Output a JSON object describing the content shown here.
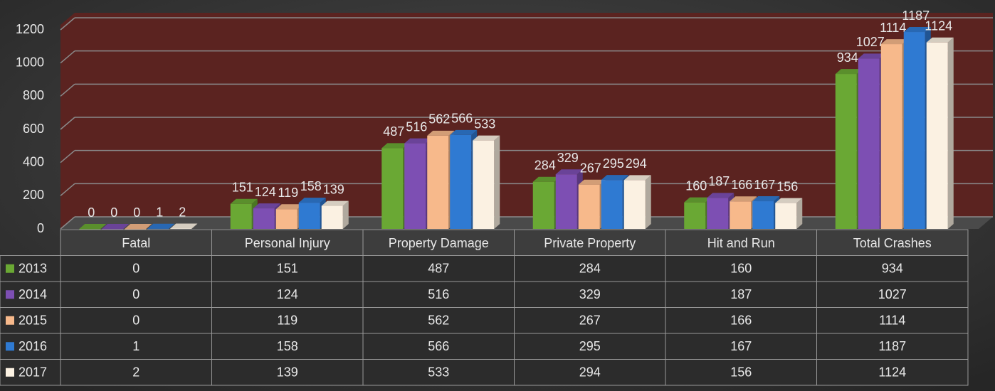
{
  "chart_data": {
    "type": "bar",
    "categories": [
      "Fatal",
      "Personal Injury",
      "Property Damage",
      "Private Property",
      "Hit and Run",
      "Total Crashes"
    ],
    "series": [
      {
        "name": "2013",
        "color": "#6aa834",
        "values": [
          0,
          151,
          487,
          284,
          160,
          934
        ]
      },
      {
        "name": "2014",
        "color": "#7d4fb3",
        "values": [
          0,
          124,
          516,
          329,
          187,
          1027
        ]
      },
      {
        "name": "2015",
        "color": "#f7b98b",
        "values": [
          0,
          119,
          562,
          267,
          166,
          1114
        ]
      },
      {
        "name": "2016",
        "color": "#2f7ad2",
        "values": [
          1,
          158,
          566,
          295,
          167,
          1187
        ]
      },
      {
        "name": "2017",
        "color": "#fbf1e2",
        "values": [
          2,
          139,
          533,
          294,
          156,
          1124
        ]
      }
    ],
    "ylim": [
      0,
      1200
    ],
    "yticks": [
      0,
      200,
      400,
      600,
      800,
      1000,
      1200
    ],
    "grid": true,
    "data_table": true
  }
}
